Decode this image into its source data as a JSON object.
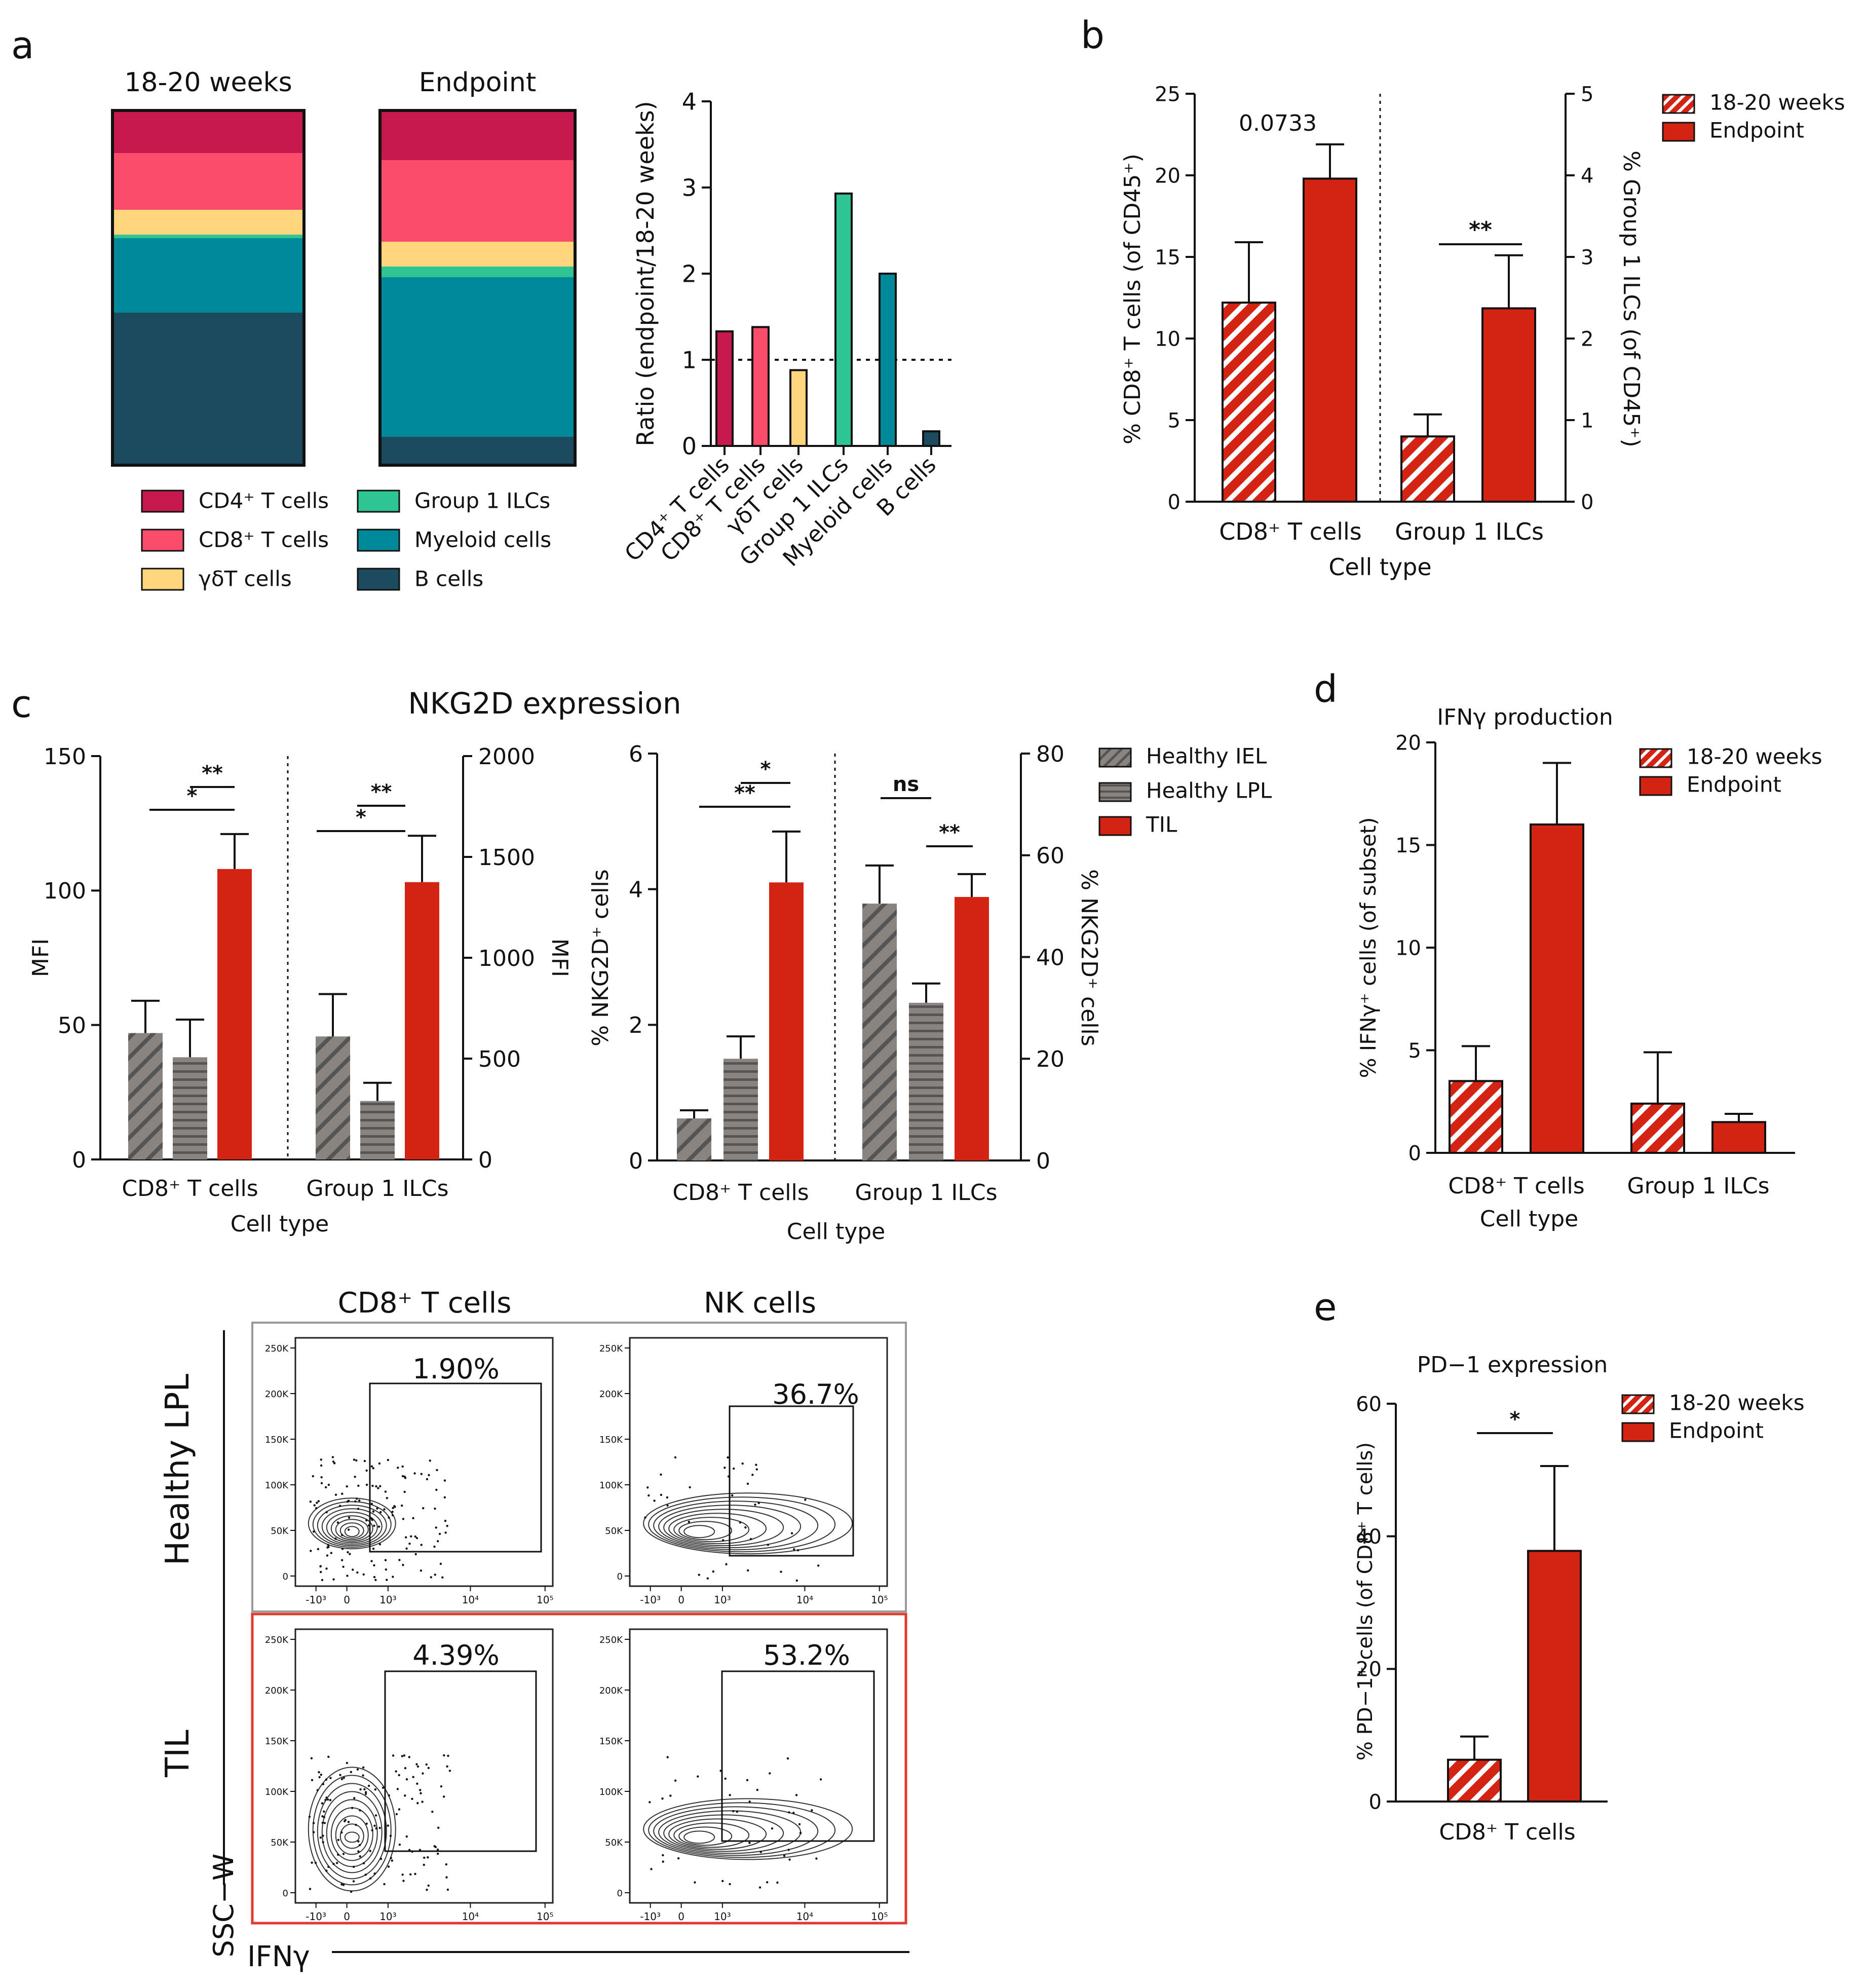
{
  "panels": {
    "a": "a",
    "b": "b",
    "c": "c",
    "d": "d",
    "e": "e"
  },
  "colors": {
    "cd4": "#c8194f",
    "cd8": "#fb4d6b",
    "gd": "#fcd57d",
    "ilc": "#2ec595",
    "myeloid": "#008a99",
    "bcell": "#1c4a5e",
    "red": "#d42213",
    "gray": "#8a8480",
    "hatch_white": "#ffffff"
  },
  "chart_data": [
    {
      "id": "a-stacked",
      "type": "bar",
      "stacked": true,
      "categories": [
        "18-20 weeks",
        "Endpoint"
      ],
      "series": [
        {
          "name": "CD4⁺ T cells",
          "key": "cd4",
          "values": [
            12,
            14
          ]
        },
        {
          "name": "CD8⁺ T cells",
          "key": "cd8",
          "values": [
            16,
            23
          ]
        },
        {
          "name": "γδT cells",
          "key": "gd",
          "values": [
            7,
            7
          ]
        },
        {
          "name": "Group 1 ILCs",
          "key": "ilc",
          "values": [
            1,
            3
          ]
        },
        {
          "name": "Myeloid cells",
          "key": "myeloid",
          "values": [
            21,
            45
          ]
        },
        {
          "name": "B cells",
          "key": "bcell",
          "values": [
            43,
            8
          ]
        }
      ],
      "legend": [
        "CD4⁺ T cells",
        "CD8⁺ T cells",
        "γδT cells",
        "Group 1 ILCs",
        "Myeloid cells",
        "B cells"
      ]
    },
    {
      "id": "a-ratio",
      "type": "bar",
      "categories": [
        "CD4⁺ T cells",
        "CD8⁺ T cells",
        "γδT cells",
        "Group 1 ILCs",
        "Myeloid cells",
        "B cells"
      ],
      "values": [
        1.33,
        1.38,
        0.88,
        2.93,
        2.0,
        0.17
      ],
      "ylabel": "Ratio (endpoint/18-20 weeks)",
      "ylim": [
        0,
        4
      ],
      "yticks": [
        "0",
        "1",
        "2",
        "3",
        "4"
      ],
      "reference_line": 1
    },
    {
      "id": "b",
      "type": "bar",
      "groups": [
        "CD8⁺ T cells",
        "Group 1 ILCs"
      ],
      "series": [
        {
          "name": "18-20 weeks",
          "values": [
            12.2,
            0.8
          ],
          "errors": [
            3.7,
            0.27
          ]
        },
        {
          "name": "Endpoint",
          "values": [
            19.8,
            2.37
          ],
          "errors": [
            2.1,
            0.65
          ]
        }
      ],
      "xlabel": "Cell type",
      "ylabel_left": "% CD8⁺ T cells (of CD45⁺)",
      "ylabel_right": "% Group 1 ILCs (of CD45⁺)",
      "ylim_left": [
        0,
        25
      ],
      "yticks_left": [
        "0",
        "5",
        "10",
        "15",
        "20",
        "25"
      ],
      "ylim_right": [
        0,
        5
      ],
      "yticks_right": [
        "0",
        "1",
        "2",
        "3",
        "4",
        "5"
      ],
      "annotations": [
        "0.0733",
        "**"
      ]
    },
    {
      "id": "c-mfi",
      "type": "bar",
      "title": "NKG2D expression",
      "groups": [
        "CD8⁺ T cells",
        "Group 1 ILCs"
      ],
      "series": [
        {
          "name": "Healthy IEL",
          "values": [
            47,
            610
          ],
          "errors": [
            12,
            210
          ]
        },
        {
          "name": "Healthy LPL",
          "values": [
            38,
            290
          ],
          "errors": [
            14,
            90
          ]
        },
        {
          "name": "TIL",
          "values": [
            108,
            1375
          ],
          "errors": [
            13,
            230
          ]
        }
      ],
      "xlabel": "Cell type",
      "ylabel_left": "MFI",
      "ylabel_right": "MFI",
      "ylim_left": [
        0,
        150
      ],
      "yticks_left": [
        "0",
        "50",
        "100",
        "150"
      ],
      "ylim_right": [
        0,
        2000
      ],
      "yticks_right": [
        "0",
        "500",
        "1000",
        "1500",
        "2000"
      ],
      "annotations": [
        "**",
        "*",
        "**",
        "*"
      ]
    },
    {
      "id": "c-pct",
      "type": "bar",
      "groups": [
        "CD8⁺ T cells",
        "Group 1 ILCs"
      ],
      "series": [
        {
          "name": "Healthy IEL",
          "values": [
            0.62,
            50.5
          ],
          "errors": [
            0.12,
            7.5
          ]
        },
        {
          "name": "Healthy LPL",
          "values": [
            1.5,
            31
          ],
          "errors": [
            0.33,
            3.8
          ]
        },
        {
          "name": "TIL",
          "values": [
            4.1,
            51.8
          ],
          "errors": [
            0.75,
            4.5
          ]
        }
      ],
      "xlabel": "Cell type",
      "ylabel_left": "% NKG2D⁺ cells",
      "ylabel_right": "% NKG2D⁺ cells",
      "ylim_left": [
        0,
        6
      ],
      "yticks_left": [
        "0",
        "2",
        "4",
        "6"
      ],
      "ylim_right": [
        0,
        80
      ],
      "yticks_right": [
        "0",
        "20",
        "40",
        "60",
        "80"
      ],
      "annotations": [
        "*",
        "**",
        "ns",
        "**"
      ],
      "legend": [
        "Healthy IEL",
        "Healthy LPL",
        "TIL"
      ]
    },
    {
      "id": "d",
      "type": "bar",
      "title": "IFNγ production",
      "groups": [
        "CD8⁺ T cells",
        "Group 1 ILCs"
      ],
      "series": [
        {
          "name": "18-20 weeks",
          "values": [
            3.5,
            2.4
          ],
          "errors": [
            1.7,
            2.5
          ]
        },
        {
          "name": "Endpoint",
          "values": [
            16.0,
            1.5
          ],
          "errors": [
            3.0,
            0.4
          ]
        }
      ],
      "xlabel": "Cell type",
      "ylabel": "% IFNγ⁺ cells (of subset)",
      "ylim": [
        0,
        20
      ],
      "yticks": [
        "0",
        "5",
        "10",
        "15",
        "20"
      ],
      "legend": [
        "18-20 weeks",
        "Endpoint"
      ]
    },
    {
      "id": "e",
      "type": "bar",
      "title": "PD−1 expression",
      "groups": [
        "CD8⁺ T cells"
      ],
      "series": [
        {
          "name": "18-20 weeks",
          "values": [
            6.3
          ],
          "errors": [
            3.5
          ]
        },
        {
          "name": "Endpoint",
          "values": [
            37.8
          ],
          "errors": [
            12.8
          ]
        }
      ],
      "ylabel": "% PD−1⁺ cells (of CD8⁺ T cells)",
      "ylim": [
        0,
        60
      ],
      "yticks": [
        "0",
        "20",
        "40",
        "60"
      ],
      "annotations": [
        "*"
      ],
      "legend": [
        "18-20 weeks",
        "Endpoint"
      ]
    },
    {
      "id": "flow",
      "type": "scatter",
      "columns": [
        "CD8⁺ T cells",
        "NK cells"
      ],
      "rows": [
        "Healthy LPL",
        "TIL"
      ],
      "gates": [
        [
          "1.90%",
          "36.7%"
        ],
        [
          "4.39%",
          "53.2%"
        ]
      ],
      "y_ticks": [
        "250K",
        "200K",
        "150K",
        "100K",
        "50K",
        "0"
      ],
      "x_ticks": [
        "-10³",
        "0",
        "10³",
        "10⁴",
        "10⁵"
      ],
      "xlabel": "IFNγ",
      "ylabel": "SSC−W"
    }
  ]
}
